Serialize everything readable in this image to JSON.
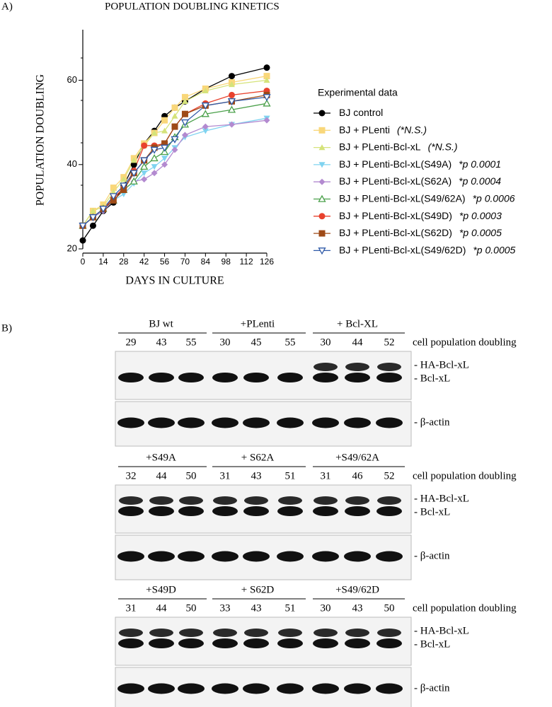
{
  "panel_a_label": "A)",
  "chart_data": {
    "type": "line",
    "title": "POPULATION DOUBLING KINETICS",
    "x_label": "DAYS IN CULTURE",
    "y_label": "POPULATION DOUBLING",
    "legend_title": "Experimental data",
    "legend": "right",
    "x": [
      0,
      7,
      14,
      21,
      28,
      35,
      42,
      49,
      56,
      63,
      70,
      84,
      102,
      126
    ],
    "xlim": [
      0,
      126
    ],
    "xticks": [
      0,
      14,
      28,
      42,
      56,
      70,
      84,
      98,
      112,
      126
    ],
    "ylim": [
      20,
      72
    ],
    "yticks": [
      20,
      40,
      60
    ],
    "series": [
      {
        "name": "BJ  control",
        "pvalue": "",
        "color": "#000000",
        "marker": "circle",
        "values": [
          22,
          25.5,
          29,
          31,
          35,
          40,
          45,
          48,
          51.5,
          53.5,
          55,
          58,
          61,
          63
        ]
      },
      {
        "name": "BJ + PLenti",
        "pvalue": "(*N.S.)",
        "color": "#f9d77a",
        "marker": "square",
        "values": [
          25.5,
          29,
          30.5,
          34.5,
          37,
          41.5,
          45,
          47.5,
          50.5,
          53.5,
          56,
          58,
          59.5,
          61
        ]
      },
      {
        "name": "BJ + PLenti-Bcl-xL",
        "pvalue": "(*N.S.)",
        "color": "#d5e37a",
        "marker": "triangle",
        "values": [
          25.5,
          29,
          30,
          33.5,
          36.5,
          41,
          44.5,
          47.5,
          48,
          51.5,
          55,
          57.5,
          59,
          60
        ]
      },
      {
        "name": "BJ + PLenti-Bcl-xL(S49A)",
        "pvalue": "*p 0.0001",
        "color": "#7fd3f0",
        "marker": "triangle-down",
        "values": [
          25.5,
          27.5,
          29,
          31.5,
          33,
          35.5,
          38,
          39.5,
          41.5,
          44,
          46.5,
          48,
          49.5,
          51
        ]
      },
      {
        "name": "BJ + PLenti-Bcl-xL(S62A)",
        "pvalue": "*p 0.0004",
        "color": "#b38ad0",
        "marker": "diamond",
        "values": [
          25.5,
          27.5,
          29,
          31.5,
          34,
          36,
          36.5,
          38,
          40,
          43.5,
          47,
          49,
          49.5,
          50.5
        ]
      },
      {
        "name": "BJ + PLenti-Bcl-xL(S49/62A)",
        "pvalue": "*p 0.0006",
        "color": "#4aa04a",
        "marker": "open-triangle",
        "values": [
          25.5,
          27.5,
          29.5,
          31.5,
          34,
          36,
          39.5,
          41.5,
          43,
          46.5,
          49.5,
          52,
          53,
          54.5
        ]
      },
      {
        "name": "BJ + PLenti-Bcl-xL(S49D)",
        "pvalue": "*p 0.0003",
        "color": "#e8412d",
        "marker": "circle",
        "values": [
          25.5,
          27.5,
          29.5,
          32,
          34.5,
          38.5,
          44.5,
          44.5,
          45,
          49,
          52,
          54.5,
          56.5,
          57.5
        ]
      },
      {
        "name": "BJ + PLenti-Bcl-xL(S62D)",
        "pvalue": "*p 0.0005",
        "color": "#9e4a17",
        "marker": "square",
        "values": [
          25.5,
          27.5,
          29.5,
          31.5,
          34,
          38,
          41,
          44,
          45,
          49,
          52,
          54,
          55,
          56.5
        ]
      },
      {
        "name": "BJ + PLenti-Bcl-xL(S49/62D)",
        "pvalue": "*p 0.0005",
        "color": "#2f5aa8",
        "marker": "open-triangle-down",
        "values": [
          25.5,
          27.5,
          29.5,
          32.5,
          35,
          38,
          41,
          43.5,
          44,
          46,
          50,
          54,
          55,
          56
        ]
      }
    ]
  },
  "panel_b": {
    "label": "B)",
    "doubling_label": "cell population doubling",
    "band_labels": [
      "- HA-Bcl-xL",
      "- Bcl-xL"
    ],
    "loading_label": "- β-actin",
    "blots": [
      {
        "groups": [
          {
            "name": "BJ wt",
            "doublings": [
              29,
              43,
              55
            ]
          },
          {
            "name": "+PLenti",
            "doublings": [
              30,
              45,
              55
            ]
          },
          {
            "name": "+ Bcl-XL",
            "doublings": [
              30,
              44,
              52
            ]
          }
        ]
      },
      {
        "groups": [
          {
            "name": "+S49A",
            "doublings": [
              32,
              44,
              50
            ]
          },
          {
            "name": "+ S62A",
            "doublings": [
              31,
              43,
              51
            ]
          },
          {
            "name": "+S49/62A",
            "doublings": [
              31,
              46,
              52
            ]
          }
        ]
      },
      {
        "groups": [
          {
            "name": "+S49D",
            "doublings": [
              31,
              44,
              50
            ]
          },
          {
            "name": "+ S62D",
            "doublings": [
              33,
              43,
              51
            ]
          },
          {
            "name": "+S49/62D",
            "doublings": [
              30,
              43,
              50
            ]
          }
        ]
      }
    ]
  }
}
